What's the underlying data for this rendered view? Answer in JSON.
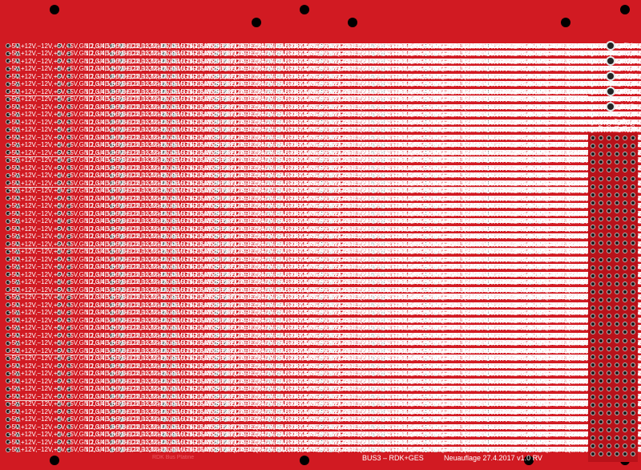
{
  "board": {
    "signals": [
      "−5V",
      "+12V",
      "−12V",
      "+5V",
      "+5V",
      "GND",
      "GND",
      "D0",
      "D1",
      "D2",
      "D3",
      "D4",
      "D5",
      "D6",
      "D7",
      "/RD",
      "/WR",
      "/IORQ",
      "/MREQ",
      "A0",
      "A1",
      "A2",
      "A3",
      "A4",
      "A5",
      "A6",
      "A7",
      "/RESET",
      "/M1",
      "Phi",
      "/RFRSH",
      "/INT",
      "/WAIT",
      "A8",
      "A9",
      "A10",
      "A11",
      "A12",
      "A13",
      "A14",
      "A15",
      "BANKEN",
      "/BUSRQ",
      "/BUSAK",
      "PI",
      "PO",
      "/NMI",
      "A16",
      "A17",
      "A18",
      "A19",
      "GND",
      "GND",
      "Reserve"
    ],
    "numbers": [
      "1",
      "2",
      "3",
      "4",
      "5",
      "6",
      "7",
      "8",
      "9",
      "10",
      "11",
      "12",
      "13",
      "14",
      "15",
      "16",
      "17",
      "18",
      "19",
      "20",
      "21",
      "22",
      "23",
      "24",
      "25",
      "26",
      "27",
      "28",
      "29",
      "30",
      "31",
      "32",
      "33",
      "34",
      "35",
      "36",
      "37",
      "38",
      "39",
      "40",
      "41",
      "42",
      "43",
      "44",
      "45",
      "46",
      "47",
      "48",
      "49",
      "50",
      "51",
      "52",
      "53",
      "54"
    ],
    "power_labels": [
      "−5V",
      "+12V",
      "−12V",
      "+5V",
      "GND"
    ],
    "rail_labels": [
      "GND",
      "+5V",
      "+12V",
      "−12V",
      "−5V"
    ],
    "title": "BUS3 – RDK+GES",
    "revision": "Neuauflage 27.4.2017 v1.0 RV",
    "faint_text": [
      "NDR Klein Computer",
      "RDK Bus Platine"
    ],
    "colors": {
      "board": "#d11a22",
      "silk": "#ffffff",
      "pad": "#1a1a1a"
    }
  }
}
